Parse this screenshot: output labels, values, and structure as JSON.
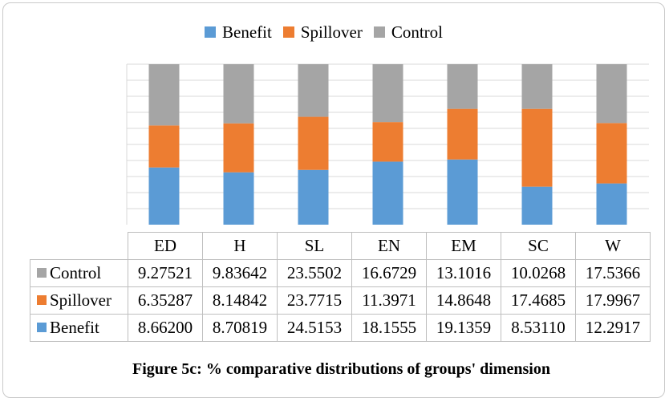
{
  "chart_data": {
    "type": "bar",
    "stacked": true,
    "normalized_percent": true,
    "title": "",
    "categories": [
      "ED",
      "H",
      "SL",
      "EN",
      "EM",
      "SC",
      "W"
    ],
    "series": [
      {
        "name": "Benefit",
        "color": "#5b9bd5",
        "values": [
          "8.66200",
          "8.70819",
          "24.5153",
          "18.1555",
          "19.1359",
          "8.53110",
          "12.2917"
        ]
      },
      {
        "name": "Spillover",
        "color": "#ed7d31",
        "values": [
          "6.35287",
          "8.14842",
          "23.7715",
          "11.3971",
          "14.8648",
          "17.4685",
          "17.9967"
        ]
      },
      {
        "name": "Control",
        "color": "#a5a5a5",
        "values": [
          "9.27521",
          "9.83642",
          "23.5502",
          "16.6729",
          "13.1016",
          "10.0268",
          "17.5366"
        ]
      }
    ],
    "legend_position": "top",
    "grid": true,
    "data_table": true,
    "ylim": [
      0,
      100
    ]
  },
  "caption": "Figure 5c: % comparative distributions of groups' dimension"
}
